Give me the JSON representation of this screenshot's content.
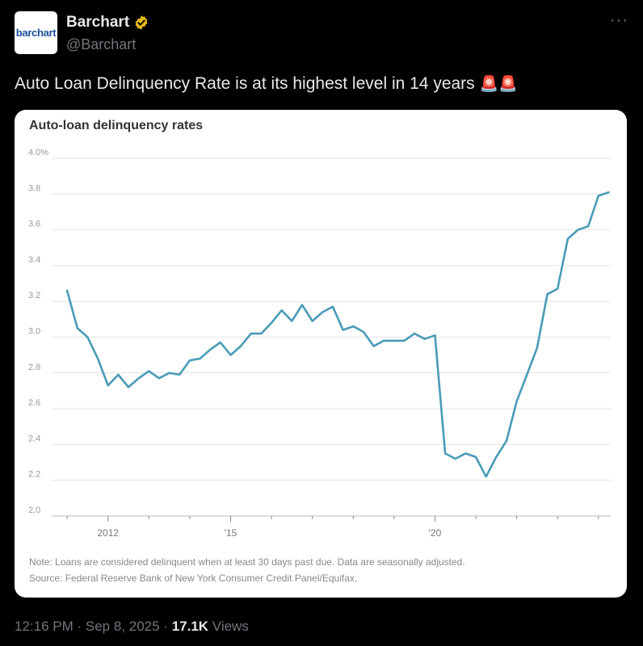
{
  "account": {
    "logo_text": "barchart",
    "name": "Barchart",
    "handle": "@Barchart"
  },
  "menu": {
    "more_label": "···"
  },
  "tweet": {
    "text": "Auto Loan Delinquency Rate is at its highest level in 14 years",
    "emoji": "🚨🚨"
  },
  "chart_data": {
    "type": "line",
    "title": "Auto-loan delinquency rates",
    "ylim": [
      2.0,
      4.0
    ],
    "xlim": [
      2010.8,
      2024.3
    ],
    "ytick_labels": [
      "4.0%",
      "3.8",
      "3.6",
      "3.4",
      "3.2",
      "3.0",
      "2.8",
      "2.6",
      "2.4",
      "2.2",
      "2.0"
    ],
    "ytick_values": [
      4.0,
      3.8,
      3.6,
      3.4,
      3.2,
      3.0,
      2.8,
      2.6,
      2.4,
      2.2,
      2.0
    ],
    "xtick_labels": [
      "2012",
      "'15",
      "'20"
    ],
    "xtick_values": [
      2012,
      2015,
      2020
    ],
    "grid": true,
    "color": "#4a9bb8",
    "series": [
      {
        "x": [
          2011.0,
          2011.25,
          2011.5,
          2011.75,
          2012.0,
          2012.25,
          2012.5,
          2012.75,
          2013.0,
          2013.25,
          2013.5,
          2013.75,
          2014.0,
          2014.25,
          2014.5,
          2014.75,
          2015.0,
          2015.25,
          2015.5,
          2015.75,
          2016.0,
          2016.25,
          2016.5,
          2016.75,
          2017.0,
          2017.25,
          2017.5,
          2017.75,
          2018.0,
          2018.25,
          2018.5,
          2018.75,
          2019.0,
          2019.25,
          2019.5,
          2019.75,
          2020.0,
          2020.25,
          2020.5,
          2020.75,
          2021.0,
          2021.25,
          2021.5,
          2021.75,
          2022.0,
          2022.25,
          2022.5,
          2022.75,
          2023.0,
          2023.25,
          2023.5,
          2023.75,
          2024.0,
          2024.25
        ],
        "y": [
          3.26,
          3.05,
          3.0,
          2.88,
          2.73,
          2.79,
          2.72,
          2.77,
          2.81,
          2.77,
          2.8,
          2.79,
          2.87,
          2.88,
          2.93,
          2.97,
          2.9,
          2.95,
          3.02,
          3.02,
          3.08,
          3.15,
          3.09,
          3.18,
          3.09,
          3.14,
          3.17,
          3.04,
          3.06,
          3.03,
          2.95,
          2.98,
          2.98,
          2.98,
          3.02,
          2.99,
          3.01,
          2.35,
          2.32,
          2.35,
          2.33,
          2.22,
          2.33,
          2.42,
          2.64,
          2.79,
          2.94,
          3.24,
          3.27,
          3.55,
          3.6,
          3.62,
          3.79,
          3.81
        ]
      }
    ],
    "note": "Note: Loans are considered delinquent when at least 30 days past due. Data are seasonally adjusted.",
    "source": "Source: Federal Reserve Bank of New York Consumer Credit Panel/Equifax."
  },
  "footer": {
    "time": "12:16 PM",
    "sep1": " · ",
    "date": "Sep 8, 2025",
    "sep2": " · ",
    "views_count": "17.1K",
    "views_label": " Views"
  }
}
